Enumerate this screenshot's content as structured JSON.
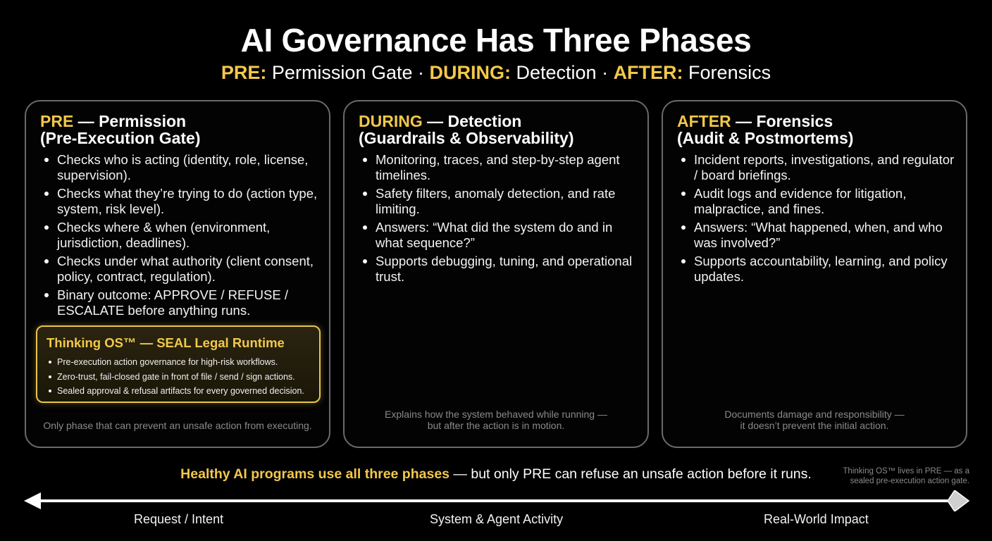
{
  "title": "AI Governance Has Three Phases",
  "subtitle": {
    "pre_label": "PRE:",
    "pre_text": " Permission Gate · ",
    "during_label": "DURING:",
    "during_text": " Detection · ",
    "after_label": "AFTER:",
    "after_text": " Forensics"
  },
  "cards": [
    {
      "key": "PRE",
      "title_rest": " — Permission",
      "title_line2": "(Pre-Execution Gate)",
      "bullets": [
        "Checks who is acting (identity, role, license, supervision).",
        "Checks what they’re trying to do (action type, system, risk level).",
        "Checks where & when (environment, jurisdiction, deadlines).",
        "Checks under what authority (client consent, policy, contract, regulation).",
        "Binary outcome: APPROVE / REFUSE / ESCALATE before anything runs."
      ],
      "footnote": "Only phase that can prevent an unsafe action from executing."
    },
    {
      "key": "DURING",
      "title_rest": " — Detection",
      "title_line2": "(Guardrails & Observability)",
      "bullets": [
        "Monitoring, traces, and step-by-step agent timelines.",
        "Safety filters, anomaly detection, and rate limiting.",
        "Answers: “What did the system do and in what sequence?”",
        "Supports debugging, tuning, and operational trust."
      ],
      "footnote_line1": "Explains how the system behaved while running —",
      "footnote_line2": "but after the action is in motion."
    },
    {
      "key": "AFTER",
      "title_rest": " — Forensics",
      "title_line2": "(Audit & Postmortems)",
      "bullets": [
        "Incident reports, investigations, and regulator / board briefings.",
        "Audit logs and evidence for litigation, malpractice, and fines.",
        "Answers: “What happened, when, and who was involved?”",
        "Supports accountability, learning, and policy updates."
      ],
      "footnote_line1": "Documents damage and responsibility —",
      "footnote_line2": "it doesn’t prevent the initial action."
    }
  ],
  "seal": {
    "title": "Thinking OS™ — SEAL Legal Runtime",
    "items": [
      "Pre-execution action governance for high-risk workflows.",
      "Zero-trust, fail-closed gate in front of file / send / sign actions.",
      "Sealed approval & refusal artifacts for every governed decision."
    ]
  },
  "footer": {
    "highlight": "Healthy AI programs use all three phases",
    "rest": " — but only PRE can refuse an unsafe action before it runs.",
    "side_note_line1": "Thinking OS™ lives in PRE — as a",
    "side_note_line2": "sealed pre-execution action gate."
  },
  "timeline": {
    "labels": [
      "Request / Intent",
      "System & Agent Activity",
      "Real-World Impact"
    ]
  },
  "colors": {
    "accent": "#f2c84b",
    "card_border": "#6a6a6a",
    "muted": "#8a8a8a"
  }
}
